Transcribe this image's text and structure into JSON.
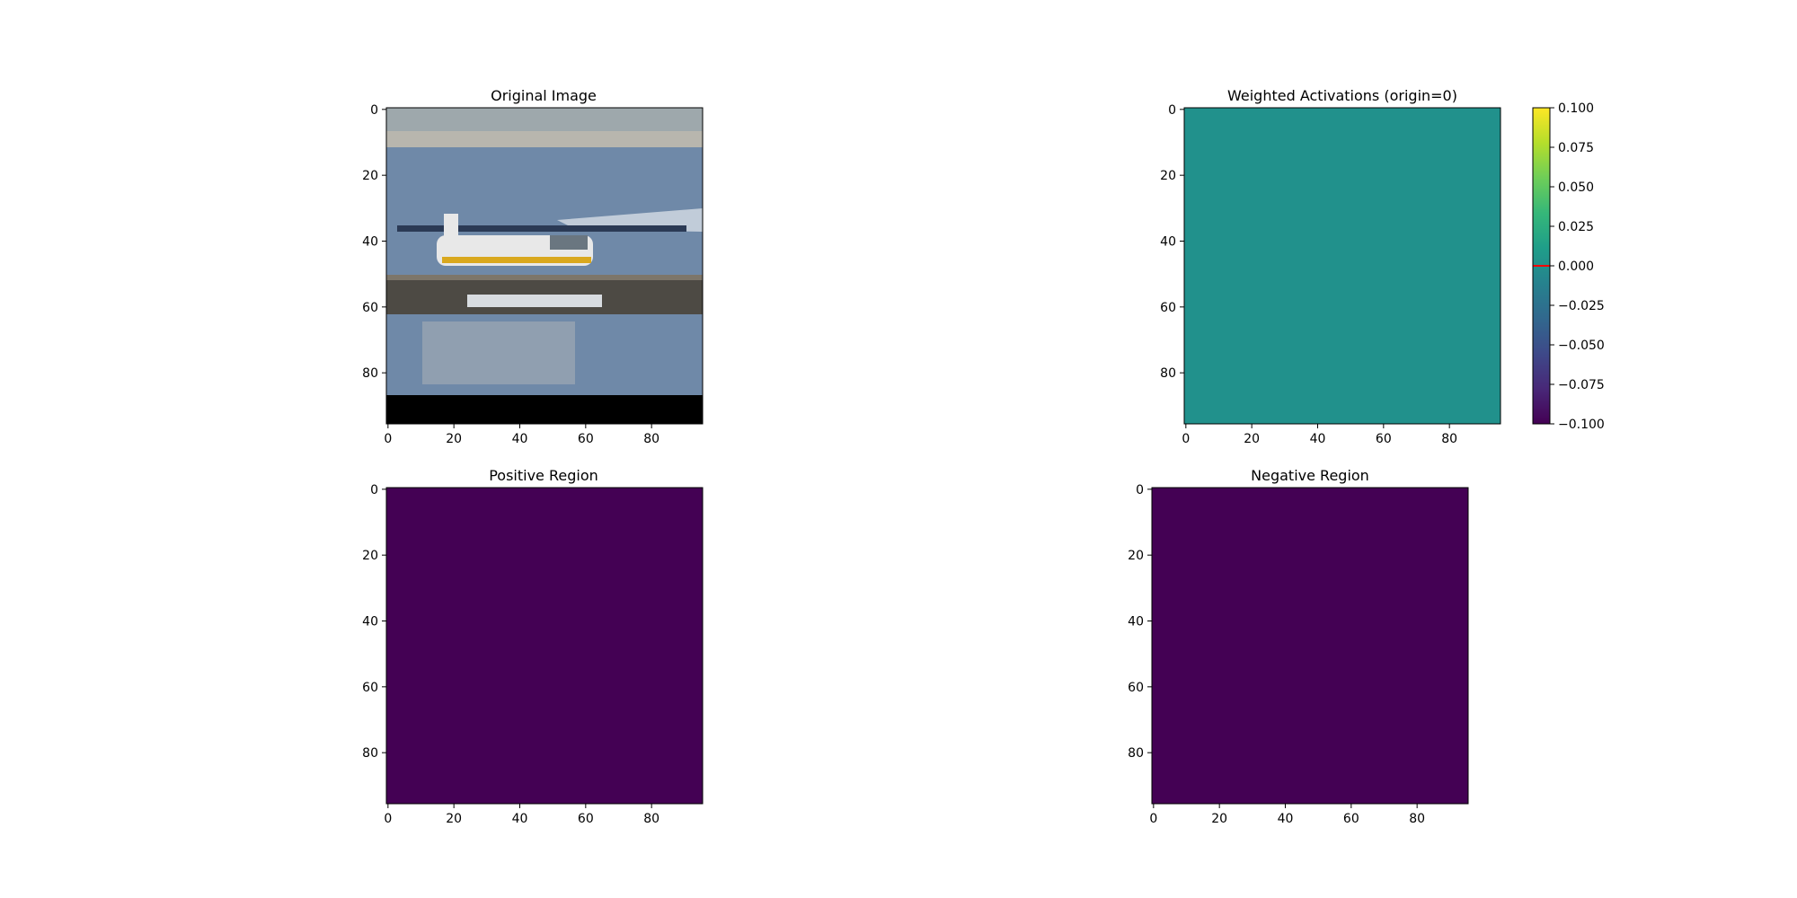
{
  "chart_data": [
    {
      "type": "heatmap",
      "title": "Original Image",
      "x_ticks": [
        0,
        20,
        40,
        60,
        80
      ],
      "y_ticks": [
        0,
        20,
        40,
        60,
        80
      ],
      "xlim": [
        -0.5,
        95.5
      ],
      "ylim": [
        95.5,
        -0.5
      ],
      "content": "rgb-photo",
      "photo_subject": "seaplane",
      "colors": {
        "sky": "#9ea8ac",
        "water": "#6f89a8",
        "dock": "#4d4a44",
        "plane_body": "#e8e8e8",
        "plane_stripe": "#d9a81e",
        "bottom_band": "#000000"
      }
    },
    {
      "type": "heatmap",
      "title": "Weighted Activations (origin=0)",
      "x_ticks": [
        0,
        20,
        40,
        60,
        80
      ],
      "y_ticks": [
        0,
        20,
        40,
        60,
        80
      ],
      "xlim": [
        -0.5,
        95.5
      ],
      "ylim": [
        95.5,
        -0.5
      ],
      "fill_value": 0.0,
      "fill_color": "#21918c",
      "colormap": "viridis",
      "colorbar": {
        "ticks": [
          0.1,
          0.075,
          0.05,
          0.025,
          0.0,
          -0.025,
          -0.05,
          -0.075,
          -0.1
        ],
        "tick_labels": [
          "0.100",
          "0.075",
          "0.050",
          "0.025",
          "0.000",
          "−0.025",
          "−0.050",
          "−0.075",
          "−0.100"
        ],
        "range": [
          -0.1,
          0.1
        ],
        "marker_value": 0.0,
        "marker_color": "#ff0000"
      }
    },
    {
      "type": "heatmap",
      "title": "Positive Region",
      "x_ticks": [
        0,
        20,
        40,
        60,
        80
      ],
      "y_ticks": [
        0,
        20,
        40,
        60,
        80
      ],
      "xlim": [
        -0.5,
        95.5
      ],
      "ylim": [
        95.5,
        -0.5
      ],
      "fill_value": 0,
      "fill_color": "#440154",
      "colormap": "viridis"
    },
    {
      "type": "heatmap",
      "title": "Negative Region",
      "x_ticks": [
        0,
        20,
        40,
        60,
        80
      ],
      "y_ticks": [
        0,
        20,
        40,
        60,
        80
      ],
      "xlim": [
        -0.5,
        95.5
      ],
      "ylim": [
        95.5,
        -0.5
      ],
      "fill_value": 0,
      "fill_color": "#440154",
      "colormap": "viridis"
    }
  ],
  "viridis_stops": [
    "#440154",
    "#482878",
    "#3e4989",
    "#31688e",
    "#26828e",
    "#1f9e89",
    "#35b779",
    "#6ece58",
    "#b5de2b",
    "#fde725"
  ]
}
